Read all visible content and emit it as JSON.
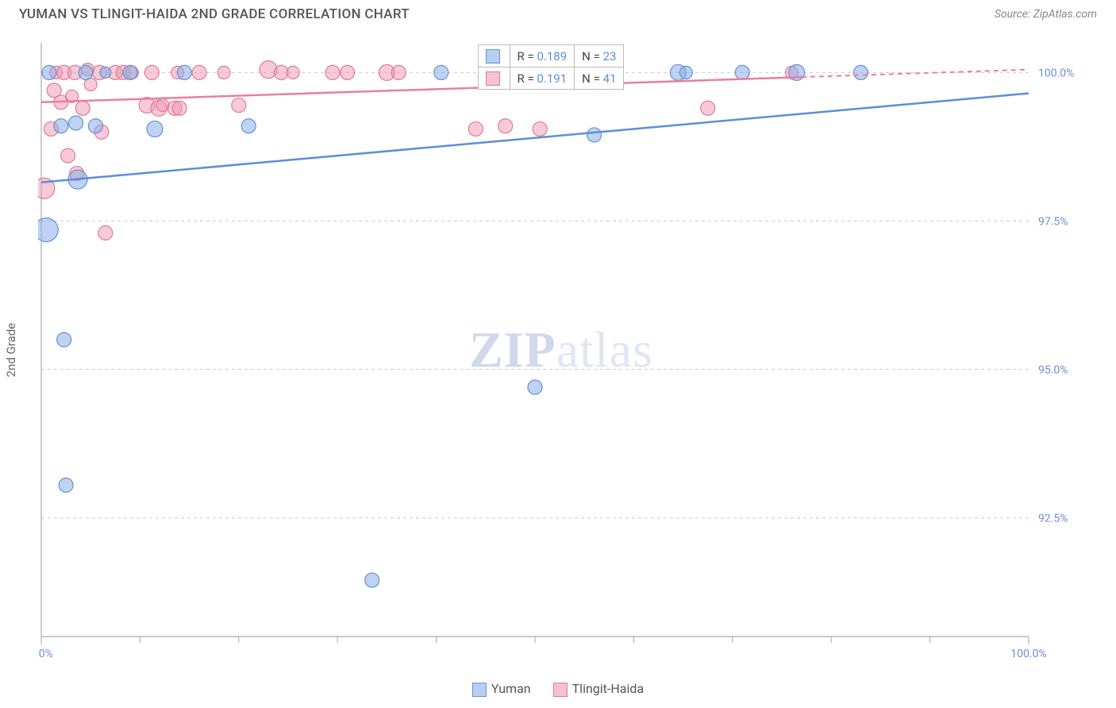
{
  "header": {
    "title": "YUMAN VS TLINGIT-HAIDA 2ND GRADE CORRELATION CHART",
    "source_prefix": "Source: ",
    "source_name": "ZipAtlas.com"
  },
  "y_axis_label": "2nd Grade",
  "watermark": {
    "zip": "ZIP",
    "atlas": "atlas"
  },
  "chart": {
    "type": "scatter",
    "background_color": "#ffffff",
    "grid_color": "#cccccc",
    "axis_color": "#aaaaaa",
    "tick_label_color": "#6b8fd6",
    "xlim": [
      0,
      100
    ],
    "ylim": [
      90.5,
      100.5
    ],
    "x_ticks_major": [
      0,
      100
    ],
    "x_ticks_labels": [
      "0.0%",
      "100.0%"
    ],
    "x_ticks_minor": [
      10,
      20,
      30,
      40,
      50,
      60,
      70,
      80,
      90
    ],
    "y_ticks": [
      92.5,
      95.0,
      97.5,
      100.0
    ],
    "y_ticks_labels": [
      "92.5%",
      "95.0%",
      "97.5%",
      "100.0%"
    ],
    "series": {
      "yuman": {
        "label": "Yuman",
        "color_fill": "rgba(135,175,230,0.55)",
        "color_stroke": "#6b8fd6",
        "marker_r_min": 7,
        "marker_r_max": 16,
        "trend": {
          "x1": 0,
          "y1": 98.15,
          "x2": 100,
          "y2": 99.65,
          "color": "#5b8fd6",
          "width": 2.5
        },
        "points": [
          {
            "x": 0.5,
            "y": 97.35,
            "r": 15
          },
          {
            "x": 0.8,
            "y": 100.0,
            "r": 9
          },
          {
            "x": 2.0,
            "y": 99.1,
            "r": 9
          },
          {
            "x": 2.3,
            "y": 95.5,
            "r": 9
          },
          {
            "x": 2.5,
            "y": 93.05,
            "r": 9
          },
          {
            "x": 3.5,
            "y": 99.15,
            "r": 9
          },
          {
            "x": 3.7,
            "y": 98.2,
            "r": 12
          },
          {
            "x": 4.5,
            "y": 100.0,
            "r": 9
          },
          {
            "x": 5.5,
            "y": 99.1,
            "r": 9
          },
          {
            "x": 6.5,
            "y": 100.0,
            "r": 7
          },
          {
            "x": 9.0,
            "y": 100.0,
            "r": 9
          },
          {
            "x": 11.5,
            "y": 99.05,
            "r": 10
          },
          {
            "x": 14.5,
            "y": 100.0,
            "r": 9
          },
          {
            "x": 21.0,
            "y": 99.1,
            "r": 9
          },
          {
            "x": 33.5,
            "y": 91.45,
            "r": 9
          },
          {
            "x": 40.5,
            "y": 100.0,
            "r": 9
          },
          {
            "x": 50.0,
            "y": 94.7,
            "r": 9
          },
          {
            "x": 56.0,
            "y": 98.95,
            "r": 9
          },
          {
            "x": 64.5,
            "y": 100.0,
            "r": 10
          },
          {
            "x": 65.3,
            "y": 100.0,
            "r": 8
          },
          {
            "x": 71.0,
            "y": 100.0,
            "r": 9
          },
          {
            "x": 76.5,
            "y": 100.0,
            "r": 10
          },
          {
            "x": 83.0,
            "y": 100.0,
            "r": 9
          }
        ]
      },
      "tlingit": {
        "label": "Tlingit-Haida",
        "color_fill": "rgba(240,150,175,0.5)",
        "color_stroke": "#e07a98",
        "marker_r_min": 7,
        "marker_r_max": 14,
        "trend": {
          "x1": 0,
          "y1": 99.5,
          "x2": 100,
          "y2": 100.05,
          "color": "#e97fa0",
          "width": 2.5,
          "dash_from_x": 77
        },
        "points": [
          {
            "x": 0.3,
            "y": 98.05,
            "r": 13
          },
          {
            "x": 1.0,
            "y": 99.05,
            "r": 9
          },
          {
            "x": 1.3,
            "y": 99.7,
            "r": 9
          },
          {
            "x": 1.5,
            "y": 100.0,
            "r": 8
          },
          {
            "x": 2.0,
            "y": 99.5,
            "r": 9
          },
          {
            "x": 2.3,
            "y": 100.0,
            "r": 9
          },
          {
            "x": 2.7,
            "y": 98.6,
            "r": 9
          },
          {
            "x": 3.1,
            "y": 99.6,
            "r": 8
          },
          {
            "x": 3.4,
            "y": 100.0,
            "r": 9
          },
          {
            "x": 3.6,
            "y": 98.3,
            "r": 9
          },
          {
            "x": 4.2,
            "y": 99.4,
            "r": 9
          },
          {
            "x": 4.7,
            "y": 100.05,
            "r": 8
          },
          {
            "x": 5.0,
            "y": 99.8,
            "r": 8
          },
          {
            "x": 5.9,
            "y": 100.0,
            "r": 9
          },
          {
            "x": 6.1,
            "y": 99.0,
            "r": 9
          },
          {
            "x": 6.5,
            "y": 97.3,
            "r": 9
          },
          {
            "x": 7.5,
            "y": 100.0,
            "r": 9
          },
          {
            "x": 8.3,
            "y": 100.0,
            "r": 9
          },
          {
            "x": 9.2,
            "y": 100.0,
            "r": 8
          },
          {
            "x": 10.7,
            "y": 99.45,
            "r": 10
          },
          {
            "x": 11.2,
            "y": 100.0,
            "r": 9
          },
          {
            "x": 11.9,
            "y": 99.4,
            "r": 10
          },
          {
            "x": 12.3,
            "y": 99.45,
            "r": 8
          },
          {
            "x": 13.5,
            "y": 99.4,
            "r": 9
          },
          {
            "x": 13.8,
            "y": 100.0,
            "r": 8
          },
          {
            "x": 14.0,
            "y": 99.4,
            "r": 9
          },
          {
            "x": 16.0,
            "y": 100.0,
            "r": 9
          },
          {
            "x": 18.5,
            "y": 100.0,
            "r": 8
          },
          {
            "x": 20.0,
            "y": 99.45,
            "r": 9
          },
          {
            "x": 23.0,
            "y": 100.05,
            "r": 11
          },
          {
            "x": 24.3,
            "y": 100.0,
            "r": 9
          },
          {
            "x": 25.5,
            "y": 100.0,
            "r": 8
          },
          {
            "x": 29.5,
            "y": 100.0,
            "r": 9
          },
          {
            "x": 31.0,
            "y": 100.0,
            "r": 9
          },
          {
            "x": 35.0,
            "y": 100.0,
            "r": 10
          },
          {
            "x": 36.2,
            "y": 100.0,
            "r": 9
          },
          {
            "x": 44.0,
            "y": 99.05,
            "r": 9
          },
          {
            "x": 47.0,
            "y": 99.1,
            "r": 9
          },
          {
            "x": 50.5,
            "y": 99.05,
            "r": 9
          },
          {
            "x": 67.5,
            "y": 99.4,
            "r": 9
          },
          {
            "x": 76.0,
            "y": 100.0,
            "r": 8
          }
        ]
      }
    }
  },
  "stats_legend": {
    "rows": [
      {
        "swatch": "#b7d0f0",
        "border": "#6b8fd6",
        "r_label": "R =",
        "r_value": "0.189",
        "n_label": "N =",
        "n_value": "23"
      },
      {
        "swatch": "#f5c2d2",
        "border": "#e07a98",
        "r_label": "R =",
        "r_value": "0.191",
        "n_label": "N =",
        "n_value": "41"
      }
    ]
  },
  "bottom_legend": {
    "items": [
      {
        "swatch": "#b7d0f0",
        "border": "#6b8fd6",
        "label": "Yuman"
      },
      {
        "swatch": "#f5c2d2",
        "border": "#e07a98",
        "label": "Tlingit-Haida"
      }
    ]
  }
}
